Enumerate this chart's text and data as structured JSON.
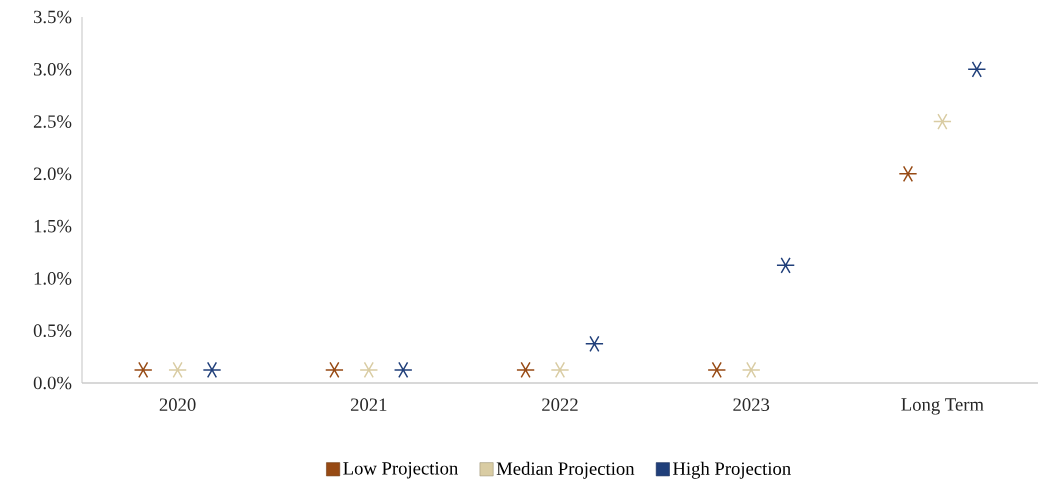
{
  "chart_data": {
    "type": "scatter",
    "categories": [
      "2020",
      "2021",
      "2022",
      "2023",
      "Long Term"
    ],
    "series": [
      {
        "name": "Low Projection",
        "color": "#974a14",
        "values": [
          0.125,
          0.125,
          0.125,
          0.125,
          2.0
        ]
      },
      {
        "name": "Median Projection",
        "color": "#d9cca3",
        "values": [
          0.125,
          0.125,
          0.125,
          0.125,
          2.5
        ]
      },
      {
        "name": "High Projection",
        "color": "#203f7a",
        "values": [
          0.125,
          0.125,
          0.375,
          1.125,
          3.0
        ]
      }
    ],
    "ylim": [
      0,
      3.5
    ],
    "yticks": [
      {
        "value": 0,
        "label": "0.0%"
      },
      {
        "value": 0.5,
        "label": "0.5%"
      },
      {
        "value": 1,
        "label": "1.0%"
      },
      {
        "value": 1.5,
        "label": "1.5%"
      },
      {
        "value": 2,
        "label": "2.0%"
      },
      {
        "value": 2.5,
        "label": "2.5%"
      },
      {
        "value": 3,
        "label": "3.0%"
      },
      {
        "value": 3.5,
        "label": "3.5%"
      }
    ],
    "legend": "bottom",
    "marker": "cross"
  }
}
